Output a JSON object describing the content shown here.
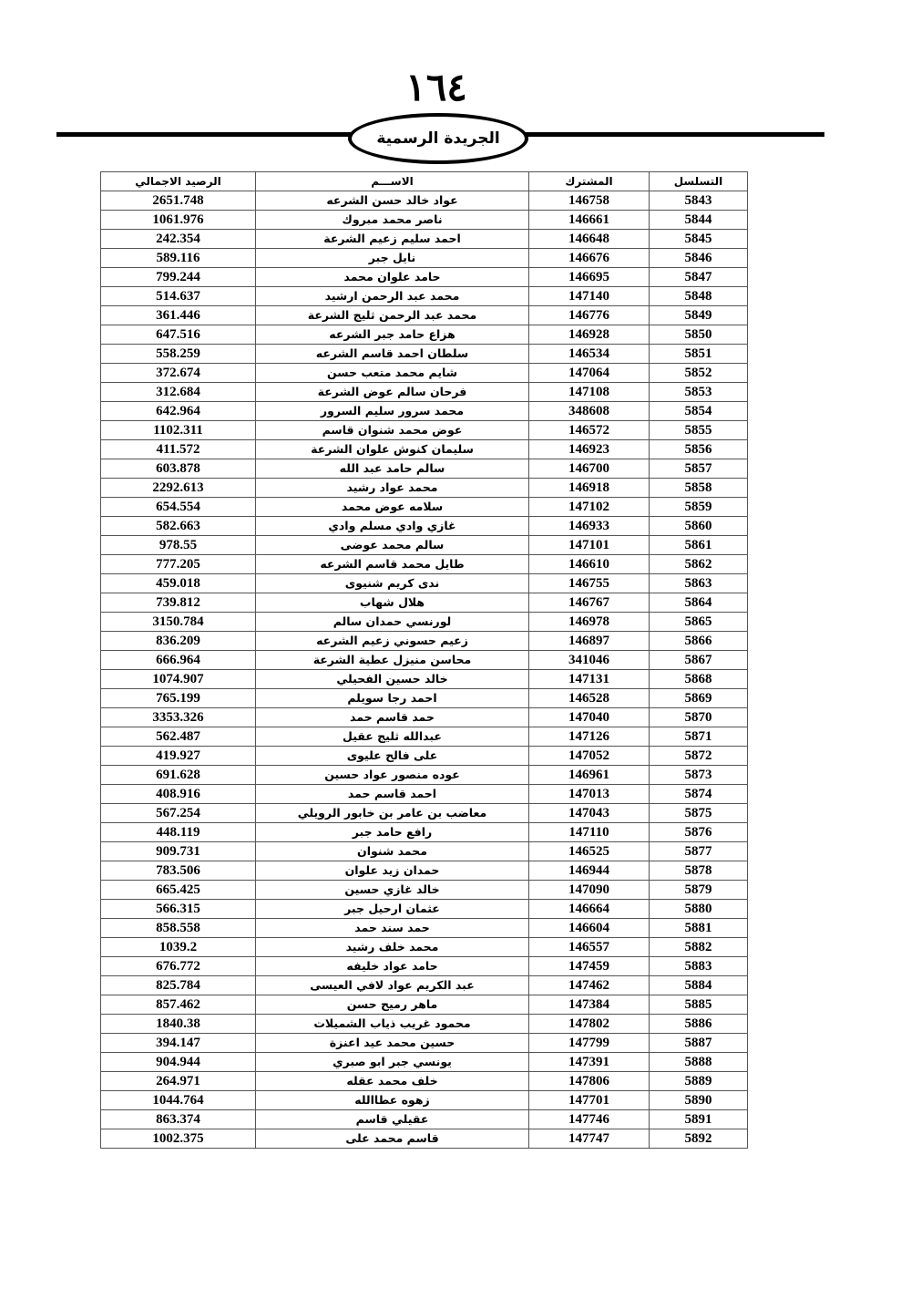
{
  "header": {
    "page_number": "١٦٤",
    "title": "الجريدة الرسمية"
  },
  "table": {
    "columns": [
      "التسلسل",
      "المشترك",
      "الاســـم",
      "الرصيد الاجمالي"
    ],
    "rows": [
      [
        "5843",
        "146758",
        "عواد خالد حسن الشرعه",
        "2651.748"
      ],
      [
        "5844",
        "146661",
        "ناصر محمد مبروك",
        "1061.976"
      ],
      [
        "5845",
        "146648",
        "احمد سليم زعيم الشرعة",
        "242.354"
      ],
      [
        "5846",
        "146676",
        "نايل جبر",
        "589.116"
      ],
      [
        "5847",
        "146695",
        "حامد علوان محمد",
        "799.244"
      ],
      [
        "5848",
        "147140",
        "محمد عبد الرحمن ارشيد",
        "514.637"
      ],
      [
        "5849",
        "146776",
        "محمد عبد الرحمن ثليج الشرعة",
        "361.446"
      ],
      [
        "5850",
        "146928",
        "هزاع حامد جبر الشرعه",
        "647.516"
      ],
      [
        "5851",
        "146534",
        "سلطان احمد قاسم الشرعه",
        "558.259"
      ],
      [
        "5852",
        "147064",
        "شايم محمد متعب حسن",
        "372.674"
      ],
      [
        "5853",
        "147108",
        "فرحان سالم عوض الشرعة",
        "312.684"
      ],
      [
        "5854",
        "348608",
        "محمد سرور سليم السرور",
        "642.964"
      ],
      [
        "5855",
        "146572",
        "عوض محمد شنوان قاسم",
        "1102.311"
      ],
      [
        "5856",
        "146923",
        "سليمان كنوش علوان الشرعة",
        "411.572"
      ],
      [
        "5857",
        "146700",
        "سالم حامد عبد الله",
        "603.878"
      ],
      [
        "5858",
        "146918",
        "محمد عواد رشيد",
        "2292.613"
      ],
      [
        "5859",
        "147102",
        "سلامه عوض محمد",
        "654.554"
      ],
      [
        "5860",
        "146933",
        "غازي وادي مسلم وادي",
        "582.663"
      ],
      [
        "5861",
        "147101",
        "سالم محمد عوضى",
        "978.55"
      ],
      [
        "5862",
        "146610",
        "طايل محمد قاسم الشرعه",
        "777.205"
      ],
      [
        "5863",
        "146755",
        "ندى كريم شنيوى",
        "459.018"
      ],
      [
        "5864",
        "146767",
        "هلال شهاب",
        "739.812"
      ],
      [
        "5865",
        "146978",
        "لورنسي حمدان سالم",
        "3150.784"
      ],
      [
        "5866",
        "146897",
        "زعيم حسوني زعيم الشرعه",
        "836.209"
      ],
      [
        "5867",
        "341046",
        "محاسن منيزل عطية الشرعة",
        "666.964"
      ],
      [
        "5868",
        "147131",
        "خالد حسين الفحيلي",
        "1074.907"
      ],
      [
        "5869",
        "146528",
        "احمد رجا سويلم",
        "765.199"
      ],
      [
        "5870",
        "147040",
        "حمد قاسم حمد",
        "3353.326"
      ],
      [
        "5871",
        "147126",
        "عبدالله ثليج عقيل",
        "562.487"
      ],
      [
        "5872",
        "147052",
        "على فالح عليوى",
        "419.927"
      ],
      [
        "5873",
        "146961",
        "عوده منصور عواد حسين",
        "691.628"
      ],
      [
        "5874",
        "147013",
        "احمد قاسم حمد",
        "408.916"
      ],
      [
        "5875",
        "147043",
        "معاضب بن عامر بن خابور الرويلي",
        "567.254"
      ],
      [
        "5876",
        "147110",
        "رافع حامد جبر",
        "448.119"
      ],
      [
        "5877",
        "146525",
        "محمد شنوان",
        "909.731"
      ],
      [
        "5878",
        "146944",
        "حمدان زيد علوان",
        "783.506"
      ],
      [
        "5879",
        "147090",
        "خالد غازي حسين",
        "665.425"
      ],
      [
        "5880",
        "146664",
        "عثمان ارحيل جبر",
        "566.315"
      ],
      [
        "5881",
        "146604",
        "حمد سند حمد",
        "858.558"
      ],
      [
        "5882",
        "146557",
        "محمد خلف رشيد",
        "1039.2"
      ],
      [
        "5883",
        "147459",
        "حامد عواد خليفه",
        "676.772"
      ],
      [
        "5884",
        "147462",
        "عبد الكريم عواد لافي العيسى",
        "825.784"
      ],
      [
        "5885",
        "147384",
        "ماهر رميح حسن",
        "857.462"
      ],
      [
        "5886",
        "147802",
        "محمود غريب ذياب الشميلات",
        "1840.38"
      ],
      [
        "5887",
        "147799",
        "حسين محمد عيد اعنزة",
        "394.147"
      ],
      [
        "5888",
        "147391",
        "يونسي جبر ابو صبري",
        "904.944"
      ],
      [
        "5889",
        "147806",
        "خلف محمد عقله",
        "264.971"
      ],
      [
        "5890",
        "147701",
        "زهوه عطاالله",
        "1044.764"
      ],
      [
        "5891",
        "147746",
        "عقيلي قاسم",
        "863.374"
      ],
      [
        "5892",
        "147747",
        "قاسم محمد على",
        "1002.375"
      ]
    ]
  }
}
